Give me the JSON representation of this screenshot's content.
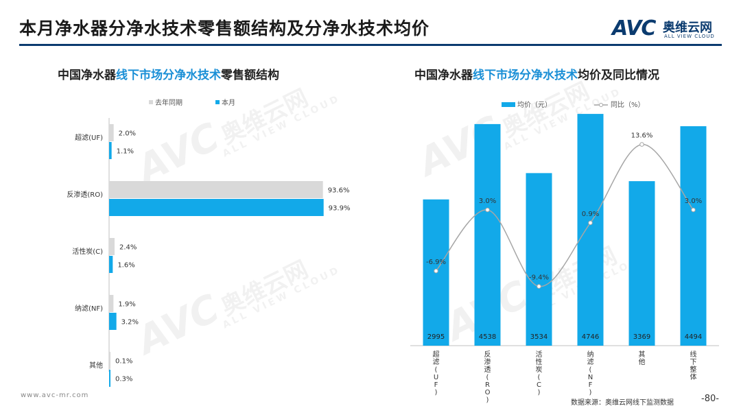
{
  "header": {
    "title": "本月净水器分净水技术零售额结构及分净水技术均价",
    "logo_mark": "AVC",
    "logo_cn": "奥维云网",
    "logo_en": "ALL VIEW CLOUD"
  },
  "left_title": {
    "prefix": "中国净水器",
    "highlight": "线下市场分净水技术",
    "suffix": "零售额结构"
  },
  "right_title": {
    "prefix": "中国净水器",
    "highlight": "线下市场分净水技术",
    "suffix": "均价及同比情况"
  },
  "watermark": {
    "mark": "AVC",
    "cn": "奥维云网",
    "en": "ALL VIEW CLOUD"
  },
  "footer": {
    "url": "www.avc-mr.com",
    "source": "数据来源：奥维云网线下监测数据",
    "page": "-80-"
  },
  "colors": {
    "current": "#12a9e9",
    "last_year": "#d9d9d9",
    "line": "#a6a6a6",
    "brand": "#0b3b6f"
  },
  "chart_data": [
    {
      "type": "bar",
      "orientation": "horizontal",
      "categories": [
        "超滤(UF)",
        "反渗透(RO)",
        "活性炭(C)",
        "纳滤(NF)",
        "其他"
      ],
      "series": [
        {
          "name": "去年同期",
          "values": [
            2.0,
            93.6,
            2.4,
            1.9,
            0.1
          ],
          "labels": [
            "2.0%",
            "93.6%",
            "2.4%",
            "1.9%",
            "0.1%"
          ]
        },
        {
          "name": "本月",
          "values": [
            1.1,
            93.9,
            1.6,
            3.2,
            0.3
          ],
          "labels": [
            "1.1%",
            "93.9%",
            "1.6%",
            "3.2%",
            "0.3%"
          ]
        }
      ],
      "xlim": [
        0,
        100
      ],
      "legend": "top-center",
      "grid": false
    },
    {
      "type": "bar",
      "categories": [
        "超滤(UF)",
        "反渗透(RO)",
        "活性炭(C)",
        "纳滤(NF)",
        "其他",
        "线下整体"
      ],
      "series": [
        {
          "name": "均价（元）",
          "type": "bar",
          "values": [
            2995,
            4538,
            3534,
            4746,
            3369,
            4494
          ]
        },
        {
          "name": "同比（%）",
          "type": "line",
          "values": [
            -6.9,
            3.0,
            -9.4,
            0.9,
            13.6,
            3.0
          ],
          "labels": [
            "-6.9%",
            "3.0%",
            "-9.4%",
            "0.9%",
            "13.6%",
            "3.0%"
          ]
        }
      ],
      "ylim": [
        0,
        5000
      ],
      "y2lim": [
        -15,
        17
      ],
      "legend": "top-center",
      "grid": false
    }
  ]
}
